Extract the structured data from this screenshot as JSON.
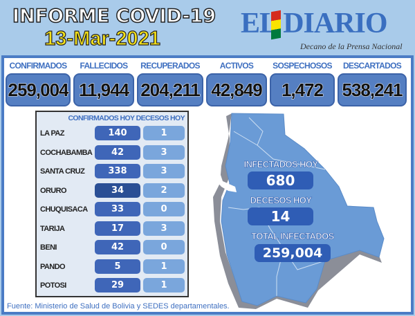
{
  "header": {
    "title": "INFORME COVID-19",
    "date": "13-Mar-2021",
    "logo": "EL DIARIO",
    "tagline": "Decano de la Prensa Nacional"
  },
  "stats": [
    {
      "label": "CONFIRMADOS",
      "value": "259,004"
    },
    {
      "label": "FALLECIDOS",
      "value": "11,944"
    },
    {
      "label": "RECUPERADOS",
      "value": "204,211"
    },
    {
      "label": "ACTIVOS",
      "value": "42,849"
    },
    {
      "label": "SOSPECHOSOS",
      "value": "1,472"
    },
    {
      "label": "DESCARTADOS",
      "value": "538,241"
    }
  ],
  "table": {
    "headers": "CONFIRMADOS HOY DECESOS HOY",
    "rows": [
      {
        "dept": "LA PAZ",
        "confirmados": "140",
        "decesos": "1"
      },
      {
        "dept": "COCHABAMBA",
        "confirmados": "42",
        "decesos": "3"
      },
      {
        "dept": "SANTA CRUZ",
        "confirmados": "338",
        "decesos": "3"
      },
      {
        "dept": "ORURO",
        "confirmados": "34",
        "decesos": "2"
      },
      {
        "dept": "CHUQUISACA",
        "confirmados": "33",
        "decesos": "0"
      },
      {
        "dept": "TARIJA",
        "confirmados": "17",
        "decesos": "3"
      },
      {
        "dept": "BENI",
        "confirmados": "42",
        "decesos": "0"
      },
      {
        "dept": "PANDO",
        "confirmados": "5",
        "decesos": "1"
      },
      {
        "dept": "POTOSI",
        "confirmados": "29",
        "decesos": "1"
      }
    ]
  },
  "map": {
    "infectados_label": "INFECTADOS HOY",
    "infectados": "680",
    "decesos_label": "DECESOS HOY",
    "decesos": "14",
    "total_label": "TOTAL INFECTADOS",
    "total": "259,004"
  },
  "source": "Fuente: Ministerio de Salud de Bolivia y SEDES departamentales.",
  "colors": {
    "accent": "#4b7cc5",
    "background": "#a9cbea",
    "date": "#f4e11a"
  }
}
